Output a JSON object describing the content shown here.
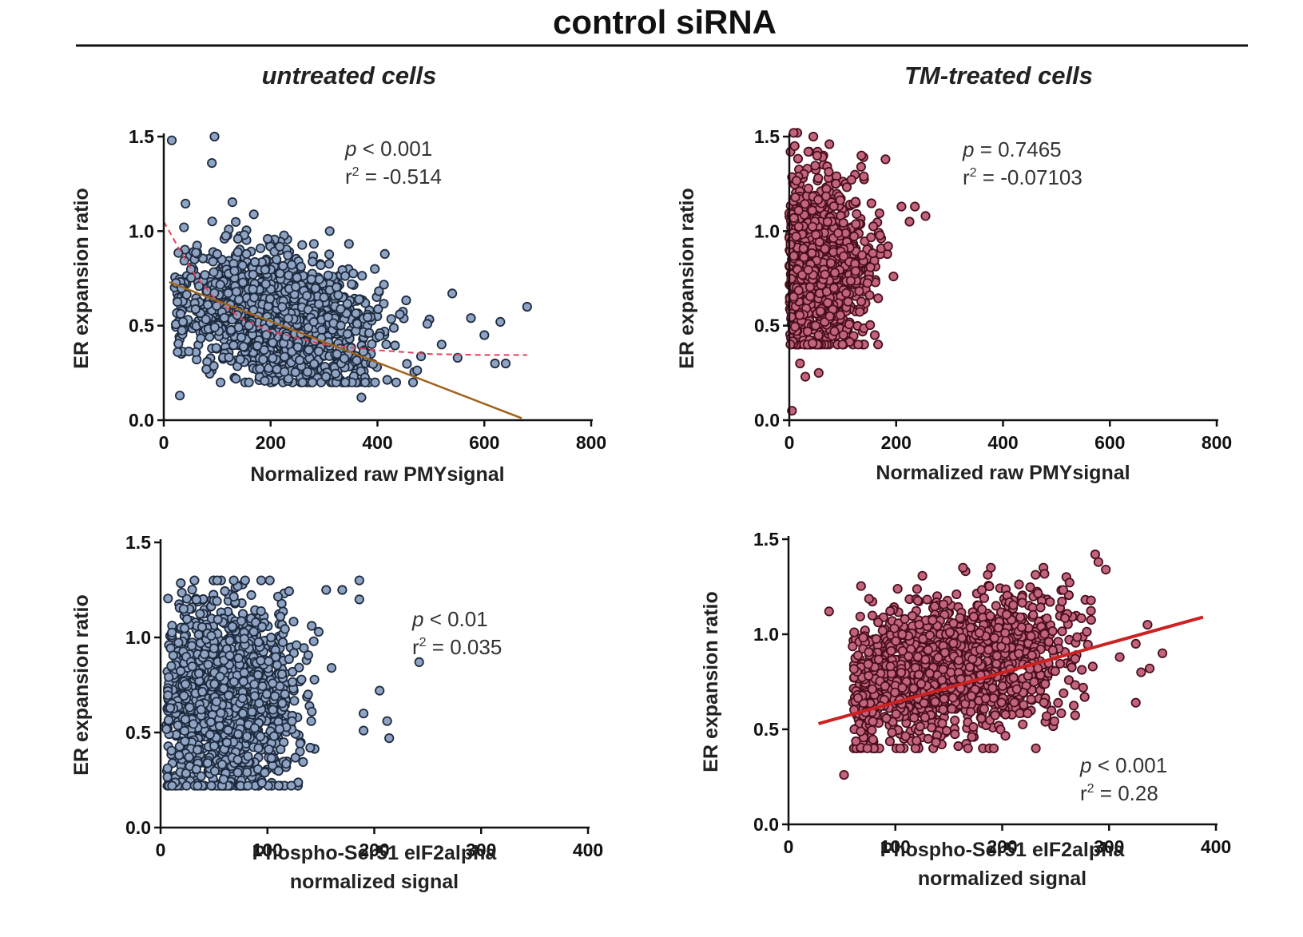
{
  "figure": {
    "title": "control siRNA",
    "column_titles": [
      "untreated cells",
      "TM-treated cells"
    ]
  },
  "colors": {
    "untreated_fill": "#8fa3c2",
    "untreated_stroke": "#1e2b3f",
    "tm_fill": "#c2647d",
    "tm_stroke": "#4a0f1d",
    "quadratic_fit": "#e0405a",
    "linear_fit_untreated": "#a0621c",
    "linear_fit_tm": "#cc2222"
  },
  "chart_data": [
    {
      "id": "untreated-pmy",
      "type": "scatter",
      "xlabel": [
        "Normalized raw PMYsignal"
      ],
      "ylabel": "ER expansion ratio",
      "xlim": [
        0,
        800
      ],
      "ylim": [
        0,
        1.5
      ],
      "xticks": [
        "0",
        "200",
        "400",
        "600",
        "800"
      ],
      "yticks": [
        "0.0",
        "0.5",
        "1.0",
        "1.5"
      ],
      "stats": {
        "p_symbol": "p",
        "p_text": " < 0.001",
        "r_symbol": "r",
        "r_exp": "2",
        "r_text": " = -0.514"
      },
      "cloud": {
        "n": 1400,
        "x_mean": 210,
        "x_sd": 95,
        "x_min": 20,
        "x_max": 500,
        "y_center": 0.55,
        "y_sd": 0.17,
        "y_slope": -0.0006,
        "y_min": 0.2,
        "y_max": 1.2,
        "seed": 11
      },
      "outliers": [
        [
          15,
          1.48
        ],
        [
          95,
          1.5
        ],
        [
          90,
          1.36
        ],
        [
          30,
          0.13
        ],
        [
          600,
          0.45
        ],
        [
          620,
          0.3
        ],
        [
          640,
          0.3
        ],
        [
          575,
          0.54
        ],
        [
          630,
          0.52
        ],
        [
          680,
          0.6
        ],
        [
          540,
          0.67
        ],
        [
          550,
          0.33
        ],
        [
          370,
          0.12
        ],
        [
          395,
          0.8
        ],
        [
          300,
          0.65
        ],
        [
          520,
          0.4
        ]
      ],
      "fits": [
        {
          "kind": "quadratic",
          "style": "dashed",
          "color_key": "quadratic_fit",
          "x_range": [
            0,
            680
          ],
          "points": [
            [
              0,
              1.05
            ],
            [
              30,
              0.9
            ],
            [
              60,
              0.76
            ],
            [
              100,
              0.63
            ],
            [
              150,
              0.53
            ],
            [
              200,
              0.47
            ],
            [
              300,
              0.4
            ],
            [
              400,
              0.37
            ],
            [
              500,
              0.35
            ],
            [
              600,
              0.345
            ],
            [
              680,
              0.345
            ]
          ]
        },
        {
          "kind": "linear",
          "style": "solid",
          "color_key": "linear_fit_untreated",
          "points": [
            [
              10,
              0.73
            ],
            [
              670,
              0.01
            ]
          ]
        }
      ]
    },
    {
      "id": "tm-pmy",
      "type": "scatter",
      "xlabel": [
        "Normalized raw PMYsignal"
      ],
      "ylabel": "ER expansion ratio",
      "xlim": [
        0,
        800
      ],
      "ylim": [
        0,
        1.5
      ],
      "xticks": [
        "0",
        "200",
        "400",
        "600",
        "800"
      ],
      "yticks": [
        "0.0",
        "0.5",
        "1.0",
        "1.5"
      ],
      "stats": {
        "p_symbol": "p",
        "p_text": " = 0.7465",
        "r_symbol": "r",
        "r_exp": "2",
        "r_text": " = -0.07103"
      },
      "cloud": {
        "n": 1200,
        "x_mean": 55,
        "x_sd": 45,
        "x_min": 0,
        "x_max": 190,
        "y_center": 0.82,
        "y_sd": 0.22,
        "y_slope": 0,
        "y_min": 0.4,
        "y_max": 1.42,
        "seed": 23
      },
      "outliers": [
        [
          15,
          1.52
        ],
        [
          45,
          1.5
        ],
        [
          75,
          1.46
        ],
        [
          135,
          1.4
        ],
        [
          180,
          1.38
        ],
        [
          210,
          1.13
        ],
        [
          235,
          1.13
        ],
        [
          255,
          1.08
        ],
        [
          225,
          1.05
        ],
        [
          5,
          0.05
        ],
        [
          30,
          0.23
        ],
        [
          55,
          0.25
        ],
        [
          20,
          0.3
        ],
        [
          10,
          1.45
        ],
        [
          185,
          0.92
        ],
        [
          195,
          0.76
        ],
        [
          160,
          0.45
        ],
        [
          8,
          1.52
        ]
      ],
      "fits": []
    },
    {
      "id": "untreated-eif2",
      "type": "scatter",
      "xlabel": [
        "Phospho-Ser51 eIF2alpha",
        "normalized signal"
      ],
      "ylabel": "ER expansion ratio",
      "xlim": [
        0,
        400
      ],
      "ylim": [
        0,
        1.5
      ],
      "xticks": [
        "0",
        "100",
        "200",
        "300",
        "400"
      ],
      "yticks": [
        "0.0",
        "0.5",
        "1.0",
        "1.5"
      ],
      "stats": {
        "p_symbol": "p",
        "p_text": " < 0.01",
        "r_symbol": "r",
        "r_exp": "2",
        "r_text": " = 0.035"
      },
      "cloud": {
        "n": 1500,
        "x_mean": 62,
        "x_sd": 30,
        "x_min": 5,
        "x_max": 145,
        "y_center": 0.68,
        "y_sd": 0.25,
        "y_slope": 0,
        "y_min": 0.22,
        "y_max": 1.3,
        "seed": 37
      },
      "outliers": [
        [
          155,
          1.25
        ],
        [
          170,
          1.25
        ],
        [
          186,
          1.3
        ],
        [
          186,
          1.2
        ],
        [
          148,
          1.03
        ],
        [
          160,
          0.84
        ],
        [
          242,
          0.87
        ],
        [
          205,
          0.72
        ],
        [
          190,
          0.6
        ],
        [
          212,
          0.56
        ],
        [
          190,
          0.51
        ],
        [
          214,
          0.47
        ],
        [
          138,
          0.7
        ],
        [
          140,
          0.42
        ],
        [
          10,
          0.85
        ]
      ],
      "fits": []
    },
    {
      "id": "tm-eif2",
      "type": "scatter",
      "xlabel": [
        "Phospho-Ser51 eIF2alpha",
        "normalized signal"
      ],
      "ylabel": "ER expansion ratio",
      "xlim": [
        0,
        400
      ],
      "ylim": [
        0,
        1.5
      ],
      "xticks": [
        "0",
        "100",
        "200",
        "300",
        "400"
      ],
      "yticks": [
        "0.0",
        "0.5",
        "1.0",
        "1.5"
      ],
      "stats": {
        "p_symbol": "p",
        "p_text": " < 0.001",
        "r_symbol": "r",
        "r_exp": "2",
        "r_text": " = 0.28"
      },
      "cloud": {
        "n": 1500,
        "x_mean": 150,
        "x_sd": 55,
        "x_min": 60,
        "x_max": 285,
        "y_center": 0.82,
        "y_sd": 0.18,
        "y_slope": 0.0012,
        "y_min": 0.4,
        "y_max": 1.35,
        "seed": 53
      },
      "outliers": [
        [
          38,
          1.12
        ],
        [
          52,
          0.26
        ],
        [
          287,
          1.42
        ],
        [
          290,
          1.38
        ],
        [
          297,
          1.34
        ],
        [
          350,
          0.9
        ],
        [
          325,
          0.95
        ],
        [
          330,
          0.8
        ],
        [
          325,
          0.64
        ],
        [
          338,
          0.82
        ],
        [
          336,
          1.05
        ],
        [
          310,
          0.88
        ]
      ],
      "fits": [
        {
          "kind": "linear",
          "style": "solid",
          "color_key": "linear_fit_tm",
          "points": [
            [
              28,
              0.53
            ],
            [
              388,
              1.09
            ]
          ]
        }
      ]
    }
  ]
}
